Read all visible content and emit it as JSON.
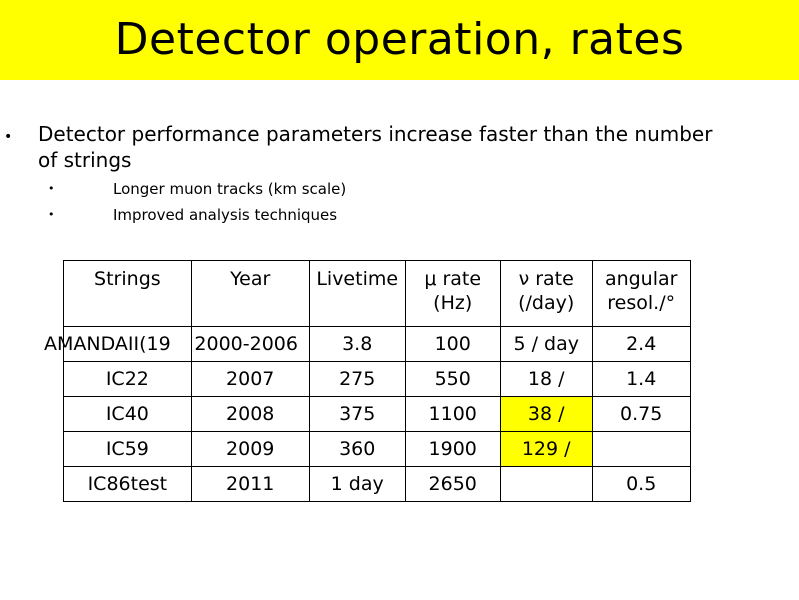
{
  "slide": {
    "title": "Detector operation, rates"
  },
  "bullets": {
    "main_marker": "•",
    "main_text": "Detector performance parameters increase faster than the number of strings",
    "sub_marker": "•",
    "sub_items": [
      "Longer muon tracks (km scale)",
      "Improved analysis techniques"
    ]
  },
  "table": {
    "headers": [
      "Strings",
      "Year",
      "Livetime",
      "μ rate (Hz)",
      "ν rate (/day)",
      "angular resol./°"
    ],
    "rows": [
      [
        "AMANDAII(19",
        "2000-2006",
        "3.8",
        "100",
        "5 / day",
        "2.4"
      ],
      [
        "IC22",
        "2007",
        "275",
        "550",
        "18 /",
        "1.4"
      ],
      [
        "IC40",
        "2008",
        "375",
        "1100",
        "38 /",
        "0.75"
      ],
      [
        "IC59",
        "2009",
        "360",
        "1900",
        "129 /",
        ""
      ],
      [
        "IC86test",
        "2011",
        "1 day",
        "2650",
        "",
        "0.5"
      ]
    ],
    "highlight_color": "#ffff00"
  }
}
